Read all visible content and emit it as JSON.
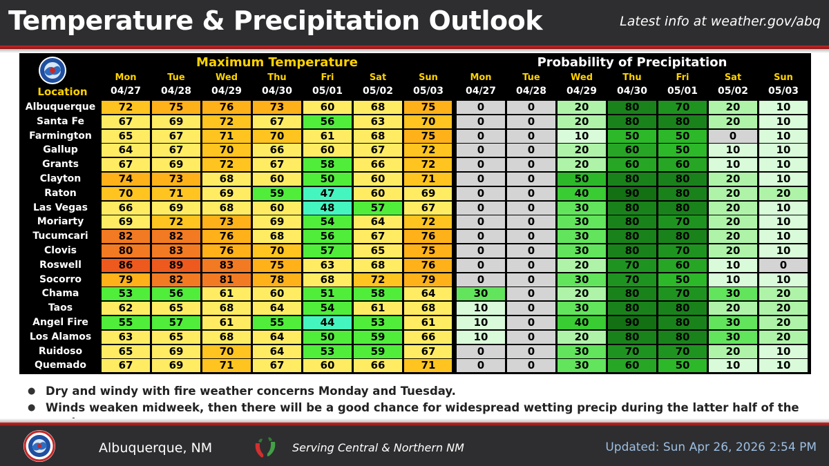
{
  "header": {
    "title": "Temperature & Precipitation Outlook",
    "info": "Latest info at weather.gov/abq"
  },
  "table": {
    "max_title": "Maximum Temperature",
    "pop_title": "Probability of Precipitation",
    "location_label": "Location",
    "days": [
      {
        "day": "Mon",
        "date": "04/27"
      },
      {
        "day": "Tue",
        "date": "04/28"
      },
      {
        "day": "Wed",
        "date": "04/29"
      },
      {
        "day": "Thu",
        "date": "04/30"
      },
      {
        "day": "Fri",
        "date": "05/01"
      },
      {
        "day": "Sat",
        "date": "05/02"
      },
      {
        "day": "Sun",
        "date": "05/03"
      }
    ],
    "rows": [
      {
        "location": "Albuquerque",
        "max": [
          72,
          75,
          76,
          73,
          60,
          68,
          75
        ],
        "pop": [
          0,
          0,
          20,
          80,
          70,
          20,
          10
        ]
      },
      {
        "location": "Santa Fe",
        "max": [
          67,
          69,
          72,
          67,
          56,
          63,
          70
        ],
        "pop": [
          0,
          0,
          20,
          80,
          80,
          20,
          10
        ]
      },
      {
        "location": "Farmington",
        "max": [
          65,
          67,
          71,
          70,
          61,
          68,
          75
        ],
        "pop": [
          0,
          0,
          10,
          50,
          50,
          0,
          10
        ]
      },
      {
        "location": "Gallup",
        "max": [
          64,
          67,
          70,
          66,
          60,
          67,
          72
        ],
        "pop": [
          0,
          0,
          20,
          60,
          50,
          10,
          10
        ]
      },
      {
        "location": "Grants",
        "max": [
          67,
          69,
          72,
          67,
          58,
          66,
          72
        ],
        "pop": [
          0,
          0,
          20,
          60,
          60,
          10,
          10
        ]
      },
      {
        "location": "Clayton",
        "max": [
          74,
          73,
          68,
          60,
          50,
          60,
          71
        ],
        "pop": [
          0,
          0,
          50,
          80,
          80,
          20,
          10
        ]
      },
      {
        "location": "Raton",
        "max": [
          70,
          71,
          69,
          59,
          47,
          60,
          69
        ],
        "pop": [
          0,
          0,
          40,
          90,
          80,
          20,
          20
        ]
      },
      {
        "location": "Las Vegas",
        "max": [
          66,
          69,
          68,
          60,
          48,
          57,
          67
        ],
        "pop": [
          0,
          0,
          30,
          80,
          80,
          20,
          10
        ]
      },
      {
        "location": "Moriarty",
        "max": [
          69,
          72,
          73,
          69,
          54,
          64,
          72
        ],
        "pop": [
          0,
          0,
          30,
          80,
          70,
          20,
          10
        ]
      },
      {
        "location": "Tucumcari",
        "max": [
          82,
          82,
          76,
          68,
          56,
          67,
          76
        ],
        "pop": [
          0,
          0,
          30,
          80,
          80,
          20,
          10
        ]
      },
      {
        "location": "Clovis",
        "max": [
          80,
          83,
          76,
          70,
          57,
          65,
          75
        ],
        "pop": [
          0,
          0,
          30,
          80,
          70,
          20,
          10
        ]
      },
      {
        "location": "Roswell",
        "max": [
          86,
          89,
          83,
          75,
          63,
          68,
          76
        ],
        "pop": [
          0,
          0,
          20,
          70,
          60,
          10,
          0
        ]
      },
      {
        "location": "Socorro",
        "max": [
          79,
          82,
          81,
          78,
          68,
          72,
          79
        ],
        "pop": [
          0,
          0,
          30,
          70,
          50,
          10,
          10
        ]
      },
      {
        "location": "Chama",
        "max": [
          53,
          56,
          61,
          60,
          51,
          58,
          64
        ],
        "pop": [
          30,
          0,
          20,
          80,
          70,
          30,
          20
        ]
      },
      {
        "location": "Taos",
        "max": [
          62,
          65,
          68,
          64,
          54,
          61,
          68
        ],
        "pop": [
          10,
          0,
          30,
          80,
          80,
          20,
          20
        ]
      },
      {
        "location": "Angel Fire",
        "max": [
          55,
          57,
          61,
          55,
          44,
          53,
          61
        ],
        "pop": [
          10,
          0,
          40,
          90,
          80,
          30,
          20
        ]
      },
      {
        "location": "Los Alamos",
        "max": [
          63,
          65,
          68,
          64,
          50,
          59,
          66
        ],
        "pop": [
          10,
          0,
          20,
          80,
          80,
          30,
          20
        ]
      },
      {
        "location": "Ruidoso",
        "max": [
          65,
          69,
          70,
          64,
          53,
          59,
          67
        ],
        "pop": [
          0,
          0,
          30,
          70,
          70,
          20,
          10
        ]
      },
      {
        "location": "Quemado",
        "max": [
          67,
          69,
          71,
          67,
          60,
          66,
          71
        ],
        "pop": [
          0,
          0,
          30,
          60,
          50,
          10,
          10
        ]
      }
    ]
  },
  "bullets": [
    "Dry and windy with fire weather concerns Monday and Tuesday.",
    "Winds weaken midweek, then there will be a good chance for widespread wetting precip during the latter half of the week."
  ],
  "footer": {
    "city": "Albuquerque, NM",
    "serving": "Serving Central & Northern NM",
    "updated": "Updated: Sun Apr 26, 2026 2:54 PM"
  },
  "colors": {
    "header_bg": "#2e2e30",
    "accent_red": "#c62828",
    "max_title": "#ffd200",
    "updated_text": "#9dbfe3"
  },
  "icons": {
    "header_logo": "nws-logo-icon",
    "footer_logo": "nws-logo-icon",
    "footer_chile": "chile-pepper-icon"
  }
}
